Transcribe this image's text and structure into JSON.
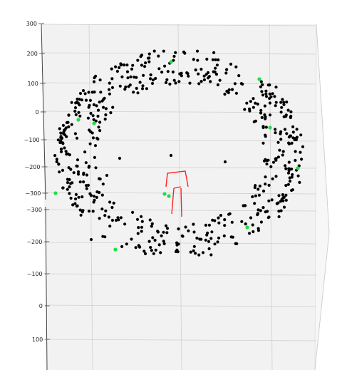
{
  "chart_data": {
    "type": "scatter",
    "title": "",
    "colors": {
      "pane": "#f2f2f2",
      "grid": "#d0d0d0",
      "dots": "#000000",
      "markers": "#22dd44",
      "figure": "#ff2020"
    },
    "y_axis_upper": {
      "tick_labels": [
        "300",
        "200",
        "100",
        "0",
        "−100",
        "−200",
        "−300"
      ],
      "ylim": [
        -300,
        300
      ]
    },
    "y_axis_lower": {
      "tick_labels": [
        "−300",
        "−200",
        "−100",
        "0",
        "100"
      ],
      "ylim": [
        -300,
        100
      ]
    },
    "series": [
      {
        "color": "#000000",
        "point_count": 560
      },
      {
        "color": "#22dd44",
        "point_count": 11
      }
    ],
    "highlight_points": [
      [
        240,
        87
      ],
      [
        364,
        111
      ],
      [
        110,
        168
      ],
      [
        132,
        173
      ],
      [
        379,
        179
      ],
      [
        418,
        236
      ],
      [
        78,
        271
      ],
      [
        231,
        272
      ],
      [
        347,
        319
      ],
      [
        162,
        350
      ],
      [
        237,
        275
      ]
    ],
    "figure_lines": [
      [
        [
          233,
          262
        ],
        [
          235,
          243
        ],
        [
          260,
          240
        ],
        [
          264,
          262
        ]
      ],
      [
        [
          244,
          264
        ],
        [
          241,
          300
        ]
      ],
      [
        [
          254,
          264
        ],
        [
          255,
          304
        ]
      ],
      [
        [
          244,
          264
        ],
        [
          254,
          262
        ]
      ]
    ],
    "grid_on": true,
    "legend": "none"
  }
}
